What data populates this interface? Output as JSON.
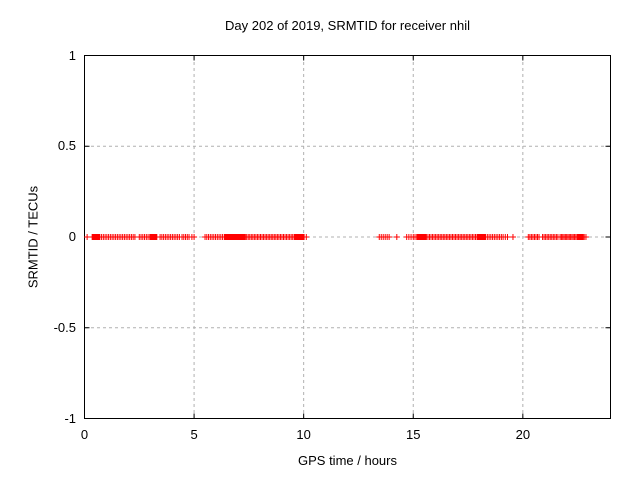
{
  "window": {
    "background": "#ffffff"
  },
  "chart_data": {
    "type": "scatter",
    "title": "Day 202 of 2019, SRMTID for receiver nhil",
    "xlabel": "GPS time / hours",
    "ylabel": "SRMTID / TECUs",
    "xlim": [
      0,
      24
    ],
    "ylim": [
      -1,
      1
    ],
    "xticks": {
      "values": [
        0,
        5,
        10,
        15,
        20
      ],
      "labels": [
        "0",
        "5",
        "10",
        "15",
        "20"
      ]
    },
    "yticks": {
      "values": [
        -1,
        -0.5,
        0,
        0.5,
        1
      ],
      "labels": [
        "-1",
        "-0.5",
        "0",
        "0.5",
        "1"
      ]
    },
    "grid": true,
    "legend": "none",
    "colors": {
      "marker": "#ff0000",
      "grid": "#b0b0b0",
      "axis": "#000000",
      "text": "#000000"
    },
    "series": [
      {
        "name": "SRMTID",
        "marker": "plus",
        "color": "#ff0000",
        "y_value": 0,
        "x_segments": [
          [
            0.12,
            0.12,
            1
          ],
          [
            0.35,
            0.7,
            0.025
          ],
          [
            0.78,
            2.3,
            0.08
          ],
          [
            2.5,
            3.0,
            0.08
          ],
          [
            3.0,
            3.3,
            0.03
          ],
          [
            3.45,
            4.35,
            0.08
          ],
          [
            4.45,
            4.8,
            0.08
          ],
          [
            4.9,
            5.05,
            0.1
          ],
          [
            5.5,
            6.4,
            0.08
          ],
          [
            6.4,
            7.0,
            0.035
          ],
          [
            7.0,
            7.35,
            0.02
          ],
          [
            7.4,
            9.6,
            0.07
          ],
          [
            9.6,
            10.05,
            0.035
          ],
          [
            10.12,
            10.12,
            1
          ],
          [
            13.45,
            13.95,
            0.09
          ],
          [
            14.25,
            14.25,
            1
          ],
          [
            14.7,
            14.9,
            0.1
          ],
          [
            15.0,
            15.2,
            0.08
          ],
          [
            15.2,
            15.6,
            0.025
          ],
          [
            15.6,
            17.95,
            0.07
          ],
          [
            17.95,
            18.3,
            0.03
          ],
          [
            18.3,
            19.05,
            0.08
          ],
          [
            19.1,
            19.3,
            0.1
          ],
          [
            19.55,
            19.55,
            1
          ],
          [
            20.25,
            20.8,
            0.07
          ],
          [
            20.9,
            21.6,
            0.07
          ],
          [
            21.7,
            22.5,
            0.06
          ],
          [
            22.5,
            22.75,
            0.025
          ],
          [
            22.8,
            22.95,
            0.08
          ]
        ]
      }
    ]
  }
}
